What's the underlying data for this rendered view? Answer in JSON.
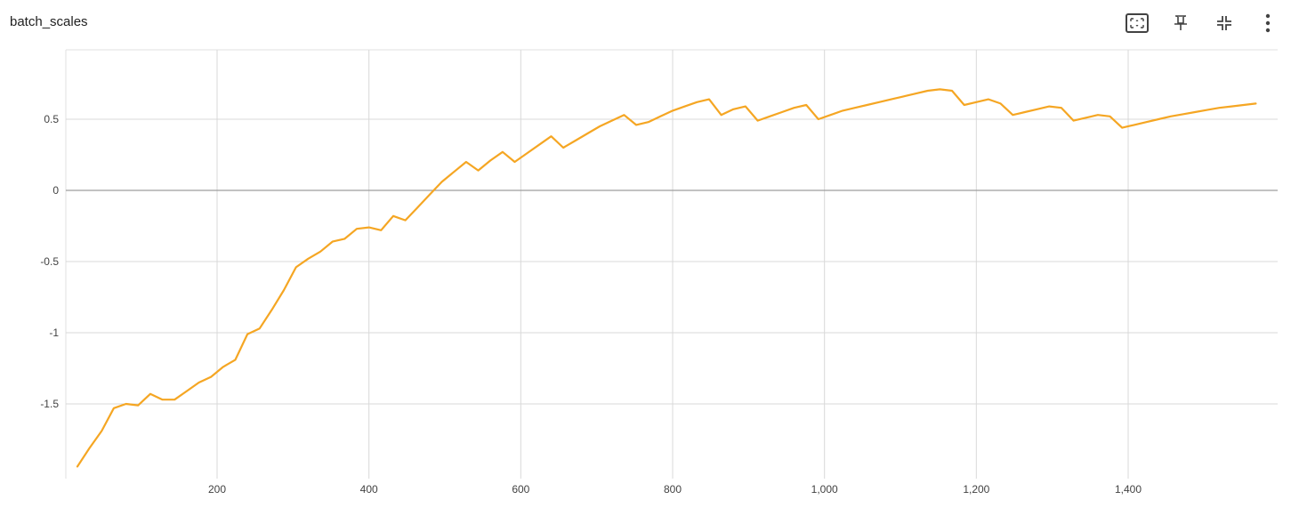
{
  "card": {
    "title": "batch_scales",
    "toolbar": [
      {
        "name": "fit-domain-button",
        "icon": "fit-to-domain-icon",
        "label": "Fit domain to data"
      },
      {
        "name": "pin-button",
        "icon": "pin-icon",
        "label": "Pin card"
      },
      {
        "name": "collapse-button",
        "icon": "collapse-icon",
        "label": "Collapse"
      },
      {
        "name": "more-button",
        "icon": "more-vert-icon",
        "label": "More"
      }
    ]
  },
  "chart_data": {
    "type": "line",
    "title": "batch_scales",
    "xlabel": "",
    "ylabel": "",
    "xlim": [
      0,
      1600
    ],
    "ylim": [
      -1.95,
      0.97
    ],
    "x_ticks": [
      200,
      400,
      600,
      800,
      1000,
      1200,
      1400
    ],
    "x_tick_labels": [
      "200",
      "400",
      "600",
      "800",
      "1,000",
      "1,200",
      "1,400"
    ],
    "y_ticks": [
      -1.5,
      -1,
      -0.5,
      0,
      0.5
    ],
    "y_tick_labels": [
      "-1.5",
      "-1",
      "-0.5",
      "0",
      "0.5"
    ],
    "grid": true,
    "color": "#f5a623",
    "series": [
      {
        "name": "batch_scales",
        "x": [
          16,
          32,
          48,
          64,
          80,
          96,
          112,
          128,
          144,
          160,
          176,
          192,
          208,
          224,
          240,
          256,
          272,
          288,
          304,
          320,
          336,
          352,
          368,
          384,
          400,
          416,
          432,
          448,
          464,
          480,
          496,
          512,
          528,
          544,
          560,
          576,
          592,
          608,
          624,
          640,
          656,
          672,
          688,
          704,
          720,
          736,
          752,
          768,
          784,
          800,
          816,
          832,
          848,
          864,
          880,
          896,
          912,
          928,
          944,
          960,
          976,
          992,
          1008,
          1024,
          1040,
          1056,
          1072,
          1088,
          1104,
          1120,
          1136,
          1152,
          1168,
          1184,
          1200,
          1216,
          1232,
          1248,
          1264,
          1280,
          1296,
          1312,
          1328,
          1344,
          1360,
          1376,
          1392,
          1408,
          1424,
          1440,
          1456,
          1472,
          1488,
          1504,
          1520,
          1536,
          1552,
          1568
        ],
        "y": [
          -1.94,
          -1.81,
          -1.69,
          -1.53,
          -1.5,
          -1.51,
          -1.43,
          -1.47,
          -1.47,
          -1.41,
          -1.35,
          -1.31,
          -1.24,
          -1.19,
          -1.01,
          -0.97,
          -0.84,
          -0.7,
          -0.54,
          -0.48,
          -0.43,
          -0.36,
          -0.34,
          -0.27,
          -0.26,
          -0.28,
          -0.18,
          -0.21,
          -0.12,
          -0.03,
          0.06,
          0.13,
          0.2,
          0.14,
          0.21,
          0.27,
          0.2,
          0.26,
          0.32,
          0.38,
          0.3,
          0.35,
          0.4,
          0.45,
          0.49,
          0.53,
          0.46,
          0.48,
          0.52,
          0.56,
          0.59,
          0.62,
          0.64,
          0.53,
          0.57,
          0.59,
          0.49,
          0.52,
          0.55,
          0.58,
          0.6,
          0.5,
          0.53,
          0.56,
          0.58,
          0.6,
          0.62,
          0.64,
          0.66,
          0.68,
          0.7,
          0.71,
          0.7,
          0.6,
          0.62,
          0.64,
          0.61,
          0.53,
          0.55,
          0.57,
          0.59,
          0.58,
          0.49,
          0.51,
          0.53,
          0.52,
          0.44,
          0.46,
          0.48,
          0.5,
          0.52,
          0.535,
          0.55,
          0.565,
          0.58,
          0.59,
          0.6,
          0.61
        ]
      }
    ]
  }
}
